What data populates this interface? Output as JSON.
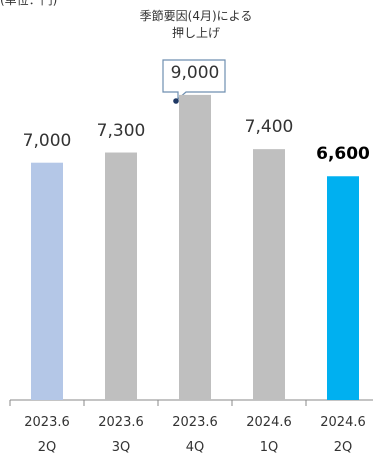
{
  "chart_data": {
    "type": "bar",
    "subtitle": "(単位：円)",
    "annotation": "季節要因(4月)による\n押し上げ",
    "categories": [
      "2023.6\n2Q",
      "2023.6\n3Q",
      "2023.6\n4Q",
      "2024.6\n1Q",
      "2024.6\n2Q"
    ],
    "values": [
      7000,
      7300,
      9000,
      7400,
      6600
    ],
    "value_labels": [
      "7,000",
      "7,300",
      "9,000",
      "7,400",
      "6,600"
    ],
    "colors": [
      "#b4c7e7",
      "#bfbfbf",
      "#bfbfbf",
      "#bfbfbf",
      "#00b0f0"
    ],
    "highlight": 4
  }
}
